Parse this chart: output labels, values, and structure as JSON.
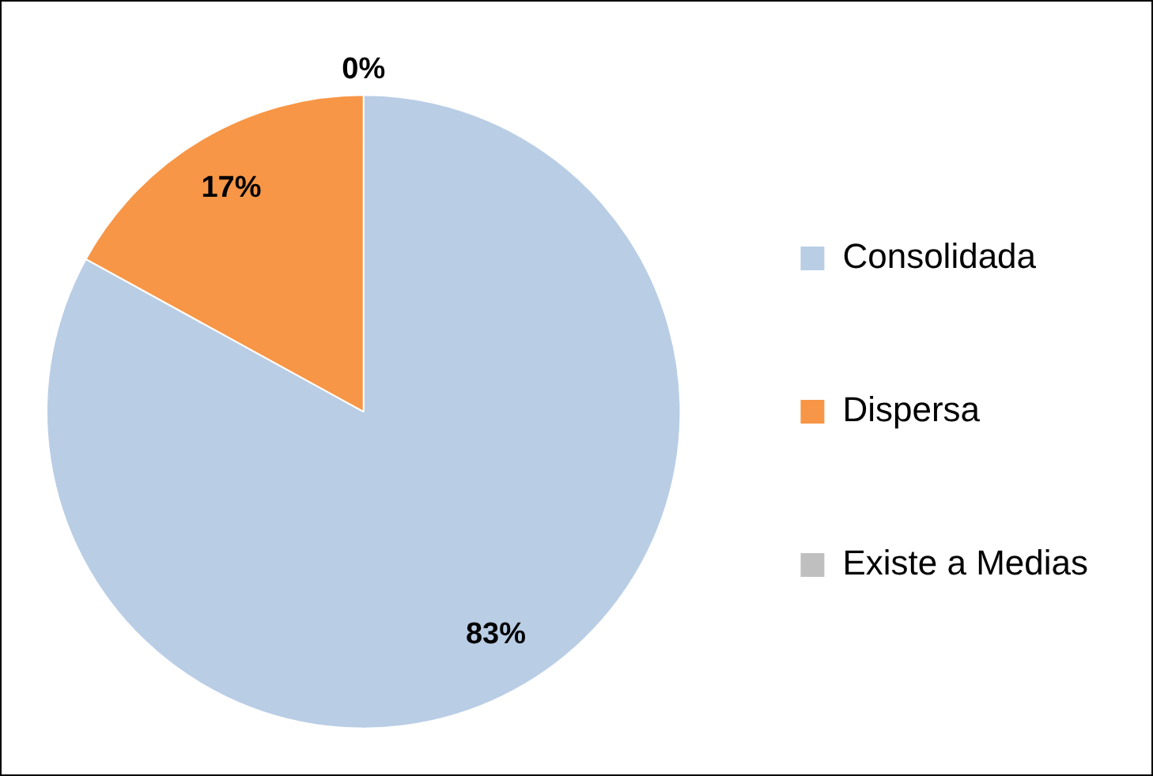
{
  "chart_data": {
    "type": "pie",
    "categories": [
      "Consolidada",
      "Dispersa",
      "Existe a Medias"
    ],
    "values": [
      83,
      17,
      0
    ],
    "colors": [
      "#b9cde5",
      "#f79646",
      "#bfbfbf"
    ],
    "value_labels": [
      "83%",
      "17%",
      "0%"
    ],
    "legend": "right"
  }
}
